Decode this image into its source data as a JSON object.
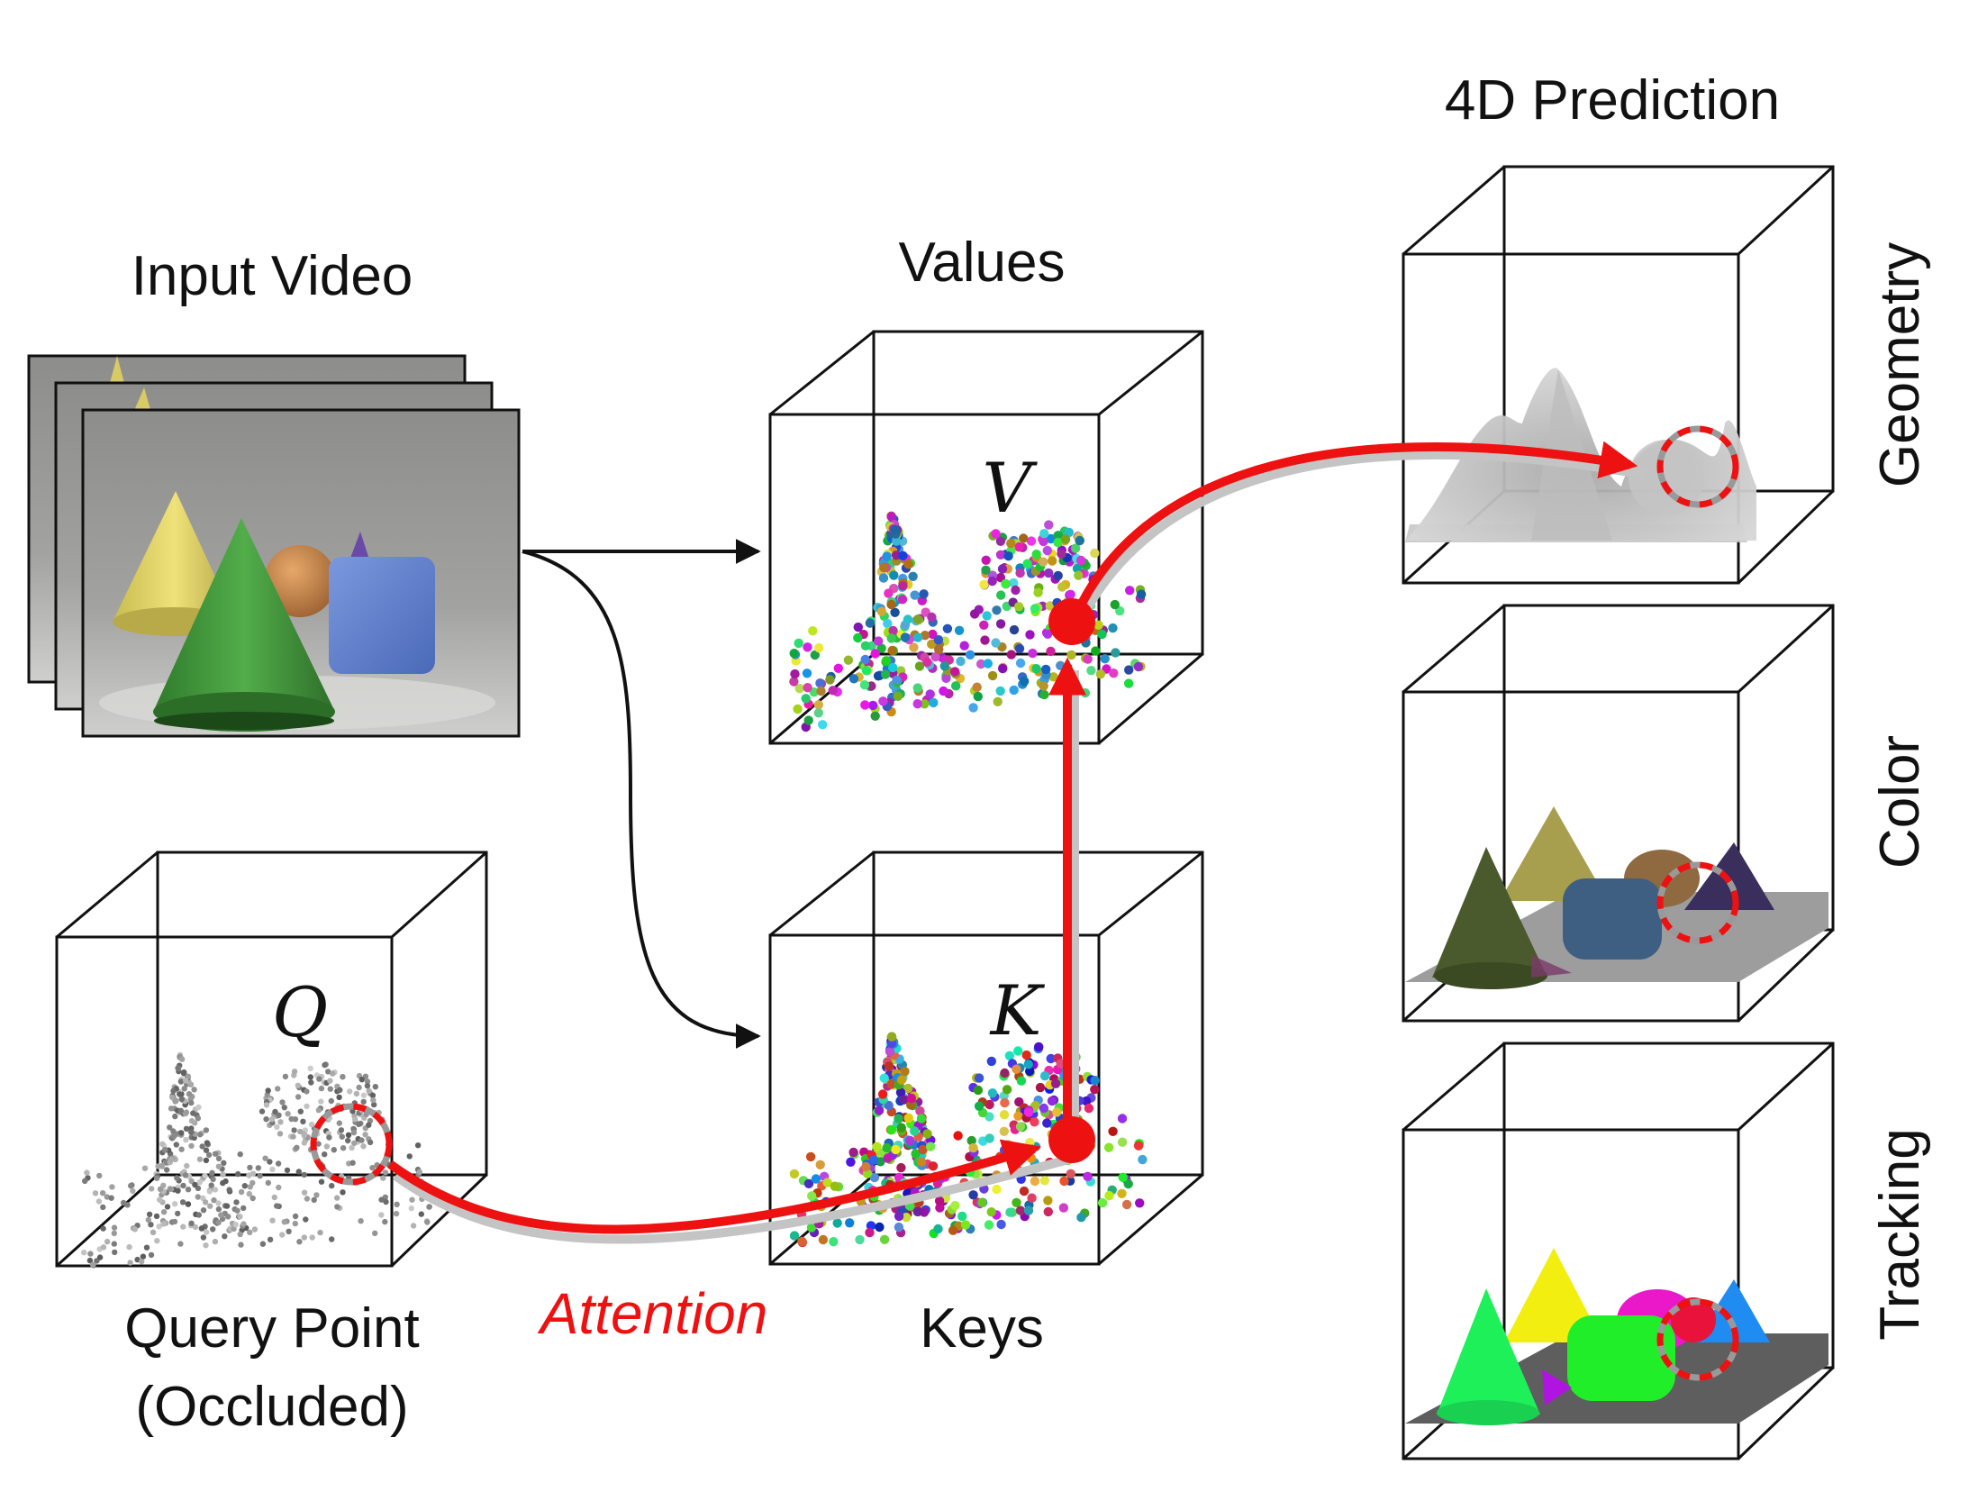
{
  "labels": {
    "input_video": "Input Video",
    "values": "Values",
    "keys": "Keys",
    "query_point_line1": "Query Point",
    "query_point_line2": "(Occluded)",
    "attention": "Attention",
    "prediction_title": "4D Prediction",
    "geometry": "Geometry",
    "color": "Color",
    "tracking": "Tracking"
  },
  "symbols": {
    "value": "V",
    "key": "K",
    "query": "Q"
  },
  "colors": {
    "attention_arrow": "#ee1111",
    "flow_arrow": "#111111",
    "frame_background": "#9a9a98",
    "cone_yellow": "#e0d060",
    "cone_green": "#3f9a3a",
    "cube_blue": "#5f80cf",
    "sphere_orange": "#c98a4a",
    "cone_purple": "#6a4aa8"
  },
  "icons": {
    "query_marker": "dashed-circle-icon",
    "attention_point": "filled-dot-icon"
  }
}
